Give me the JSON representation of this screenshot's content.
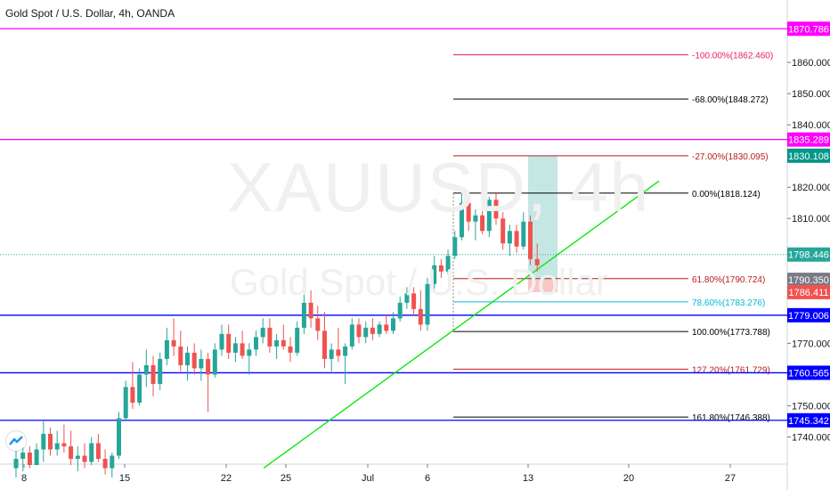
{
  "header": {
    "title": "Gold Spot / U.S. Dollar, 4h, OANDA"
  },
  "watermark": {
    "symbol": "XAUUSD, 4h",
    "description": "Gold Spot / U.S. Dollar"
  },
  "colors": {
    "up": "#26a69a",
    "down": "#ef5350",
    "magenta": "#ff00ff",
    "blue": "#0000ff",
    "trend": "#00e600",
    "fib_red": "#b71c1c",
    "fib_black": "#000000",
    "fib_cyan": "#00bcd4",
    "long_profit": "#b2dfdb",
    "long_stop": "#f8bbbb"
  },
  "chart_data": {
    "type": "candlestick",
    "symbol": "XAUUSD",
    "timeframe": "4h",
    "ylim": [
      1733,
      1878
    ],
    "y_ticks": [
      1740,
      1750,
      1760,
      1770,
      1780,
      1790,
      1800,
      1810,
      1820,
      1830,
      1840,
      1850,
      1860
    ],
    "y_tick_labels": [
      "1740.000",
      "1750.000",
      "1760.000",
      "1770.000",
      "",
      "",
      "",
      "1810.000",
      "1820.000",
      "",
      "1840.000",
      "1850.000",
      "1860.000"
    ],
    "x_ticks": [
      "8",
      "15",
      "22",
      "25",
      "Jul",
      "6",
      "13",
      "20",
      "27"
    ],
    "candles": [
      {
        "o": 1730,
        "h": 1737,
        "l": 1727,
        "c": 1733
      },
      {
        "o": 1733,
        "h": 1738,
        "l": 1729,
        "c": 1735
      },
      {
        "o": 1735,
        "h": 1737,
        "l": 1730,
        "c": 1731
      },
      {
        "o": 1731,
        "h": 1738,
        "l": 1731,
        "c": 1736
      },
      {
        "o": 1736,
        "h": 1745,
        "l": 1732,
        "c": 1741
      },
      {
        "o": 1741,
        "h": 1743,
        "l": 1734,
        "c": 1736
      },
      {
        "o": 1736,
        "h": 1742,
        "l": 1734,
        "c": 1738
      },
      {
        "o": 1738,
        "h": 1744,
        "l": 1735,
        "c": 1737
      },
      {
        "o": 1737,
        "h": 1742,
        "l": 1731,
        "c": 1733
      },
      {
        "o": 1733,
        "h": 1737,
        "l": 1729,
        "c": 1734
      },
      {
        "o": 1734,
        "h": 1738,
        "l": 1730,
        "c": 1732
      },
      {
        "o": 1732,
        "h": 1740,
        "l": 1731,
        "c": 1738
      },
      {
        "o": 1738,
        "h": 1741,
        "l": 1732,
        "c": 1733
      },
      {
        "o": 1733,
        "h": 1736,
        "l": 1728,
        "c": 1730
      },
      {
        "o": 1730,
        "h": 1735,
        "l": 1727,
        "c": 1734
      },
      {
        "o": 1734,
        "h": 1748,
        "l": 1733,
        "c": 1746
      },
      {
        "o": 1746,
        "h": 1758,
        "l": 1745,
        "c": 1756
      },
      {
        "o": 1756,
        "h": 1764,
        "l": 1749,
        "c": 1751
      },
      {
        "o": 1751,
        "h": 1762,
        "l": 1750,
        "c": 1760
      },
      {
        "o": 1760,
        "h": 1768,
        "l": 1756,
        "c": 1763
      },
      {
        "o": 1763,
        "h": 1766,
        "l": 1753,
        "c": 1757
      },
      {
        "o": 1757,
        "h": 1767,
        "l": 1755,
        "c": 1765
      },
      {
        "o": 1765,
        "h": 1775,
        "l": 1763,
        "c": 1771
      },
      {
        "o": 1771,
        "h": 1778,
        "l": 1766,
        "c": 1769
      },
      {
        "o": 1769,
        "h": 1774,
        "l": 1761,
        "c": 1763
      },
      {
        "o": 1763,
        "h": 1769,
        "l": 1758,
        "c": 1767
      },
      {
        "o": 1767,
        "h": 1770,
        "l": 1760,
        "c": 1762
      },
      {
        "o": 1762,
        "h": 1768,
        "l": 1758,
        "c": 1765
      },
      {
        "o": 1765,
        "h": 1767,
        "l": 1748,
        "c": 1760
      },
      {
        "o": 1760,
        "h": 1770,
        "l": 1759,
        "c": 1768
      },
      {
        "o": 1768,
        "h": 1776,
        "l": 1766,
        "c": 1773
      },
      {
        "o": 1773,
        "h": 1776,
        "l": 1765,
        "c": 1767
      },
      {
        "o": 1767,
        "h": 1772,
        "l": 1764,
        "c": 1770
      },
      {
        "o": 1770,
        "h": 1774,
        "l": 1765,
        "c": 1766
      },
      {
        "o": 1766,
        "h": 1770,
        "l": 1760,
        "c": 1768
      },
      {
        "o": 1768,
        "h": 1774,
        "l": 1766,
        "c": 1772
      },
      {
        "o": 1772,
        "h": 1778,
        "l": 1770,
        "c": 1775
      },
      {
        "o": 1775,
        "h": 1778,
        "l": 1767,
        "c": 1769
      },
      {
        "o": 1769,
        "h": 1773,
        "l": 1765,
        "c": 1771
      },
      {
        "o": 1771,
        "h": 1776,
        "l": 1768,
        "c": 1769
      },
      {
        "o": 1769,
        "h": 1772,
        "l": 1764,
        "c": 1767
      },
      {
        "o": 1767,
        "h": 1777,
        "l": 1766,
        "c": 1775
      },
      {
        "o": 1775,
        "h": 1786,
        "l": 1773,
        "c": 1783
      },
      {
        "o": 1783,
        "h": 1787,
        "l": 1775,
        "c": 1778
      },
      {
        "o": 1778,
        "h": 1782,
        "l": 1771,
        "c": 1774
      },
      {
        "o": 1774,
        "h": 1780,
        "l": 1762,
        "c": 1765
      },
      {
        "o": 1765,
        "h": 1770,
        "l": 1761,
        "c": 1768
      },
      {
        "o": 1768,
        "h": 1775,
        "l": 1764,
        "c": 1766
      },
      {
        "o": 1766,
        "h": 1770,
        "l": 1757,
        "c": 1769
      },
      {
        "o": 1769,
        "h": 1778,
        "l": 1768,
        "c": 1776
      },
      {
        "o": 1776,
        "h": 1778,
        "l": 1770,
        "c": 1772
      },
      {
        "o": 1772,
        "h": 1777,
        "l": 1770,
        "c": 1775
      },
      {
        "o": 1775,
        "h": 1778,
        "l": 1771,
        "c": 1773
      },
      {
        "o": 1773,
        "h": 1777,
        "l": 1772,
        "c": 1776
      },
      {
        "o": 1776,
        "h": 1779,
        "l": 1773,
        "c": 1774
      },
      {
        "o": 1774,
        "h": 1780,
        "l": 1773,
        "c": 1778
      },
      {
        "o": 1778,
        "h": 1785,
        "l": 1777,
        "c": 1783
      },
      {
        "o": 1783,
        "h": 1788,
        "l": 1781,
        "c": 1786
      },
      {
        "o": 1786,
        "h": 1788,
        "l": 1779,
        "c": 1781
      },
      {
        "o": 1781,
        "h": 1787,
        "l": 1774,
        "c": 1776
      },
      {
        "o": 1776,
        "h": 1791,
        "l": 1774,
        "c": 1789
      },
      {
        "o": 1789,
        "h": 1798,
        "l": 1787,
        "c": 1795
      },
      {
        "o": 1795,
        "h": 1797,
        "l": 1791,
        "c": 1793
      },
      {
        "o": 1793,
        "h": 1800,
        "l": 1792,
        "c": 1798
      },
      {
        "o": 1798,
        "h": 1806,
        "l": 1797,
        "c": 1804
      },
      {
        "o": 1804,
        "h": 1818,
        "l": 1803,
        "c": 1815
      },
      {
        "o": 1815,
        "h": 1817,
        "l": 1806,
        "c": 1809
      },
      {
        "o": 1809,
        "h": 1813,
        "l": 1803,
        "c": 1811
      },
      {
        "o": 1811,
        "h": 1816,
        "l": 1805,
        "c": 1806
      },
      {
        "o": 1806,
        "h": 1817,
        "l": 1804,
        "c": 1816
      },
      {
        "o": 1816,
        "h": 1818,
        "l": 1808,
        "c": 1810
      },
      {
        "o": 1810,
        "h": 1812,
        "l": 1800,
        "c": 1802
      },
      {
        "o": 1802,
        "h": 1808,
        "l": 1798,
        "c": 1806
      },
      {
        "o": 1806,
        "h": 1808,
        "l": 1799,
        "c": 1801
      },
      {
        "o": 1801,
        "h": 1812,
        "l": 1800,
        "c": 1809
      },
      {
        "o": 1809,
        "h": 1811,
        "l": 1795,
        "c": 1797
      },
      {
        "o": 1797,
        "h": 1802,
        "l": 1793,
        "c": 1795
      }
    ],
    "horizontal_lines": [
      {
        "price": 1870.786,
        "label": "1870.786",
        "color": "#ff00ff"
      },
      {
        "price": 1835.289,
        "label": "1835.289",
        "color": "#ff00ff"
      },
      {
        "price": 1779.006,
        "label": "1779.006",
        "color": "#0000ff"
      },
      {
        "price": 1760.565,
        "label": "1760.565",
        "color": "#0000ff"
      },
      {
        "price": 1745.342,
        "label": "1745.342",
        "color": "#0000ff"
      }
    ],
    "current_price_line": {
      "price": 1798.446
    },
    "price_tags": [
      {
        "price": 1830.108,
        "label": "1830.108",
        "color": "#009688"
      },
      {
        "price": 1798.446,
        "label": "1798.446",
        "color": "#26a69a"
      },
      {
        "price": 1790.35,
        "label": "1790.350",
        "color": "#787b86"
      },
      {
        "price": 1786.411,
        "label": "1786.411",
        "color": "#ef5350"
      }
    ],
    "fibonacci": [
      {
        "level": "-100.00%",
        "price": 1862.46,
        "label": "-100.00%(1862.460)",
        "color": "#e91e63"
      },
      {
        "level": "-68.00%",
        "price": 1848.272,
        "label": "-68.00%(1848.272)",
        "color": "#000000"
      },
      {
        "level": "-27.00%",
        "price": 1830.095,
        "label": "-27.00%(1830.095)",
        "color": "#b71c1c"
      },
      {
        "level": "0.00%",
        "price": 1818.124,
        "label": "0.00%(1818.124)",
        "color": "#000000"
      },
      {
        "level": "61.80%",
        "price": 1790.724,
        "label": "61.80%(1790.724)",
        "color": "#b71c1c"
      },
      {
        "level": "78.60%",
        "price": 1783.276,
        "label": "78.60%(1783.276)",
        "color": "#00bcd4"
      },
      {
        "level": "100.00%",
        "price": 1773.788,
        "label": "100.00%(1773.788)",
        "color": "#000000"
      },
      {
        "level": "127.20%",
        "price": 1761.729,
        "label": "127.20%(1761.729)",
        "color": "#b71c1c"
      },
      {
        "level": "161.80%",
        "price": 1746.388,
        "label": "161.80%(1746.388)",
        "color": "#000000"
      }
    ],
    "long_position": {
      "entry": 1790.35,
      "target": 1830.108,
      "stop": 1786.411
    },
    "trend_line": {
      "from_price": 1730,
      "to_price": 1822
    }
  }
}
